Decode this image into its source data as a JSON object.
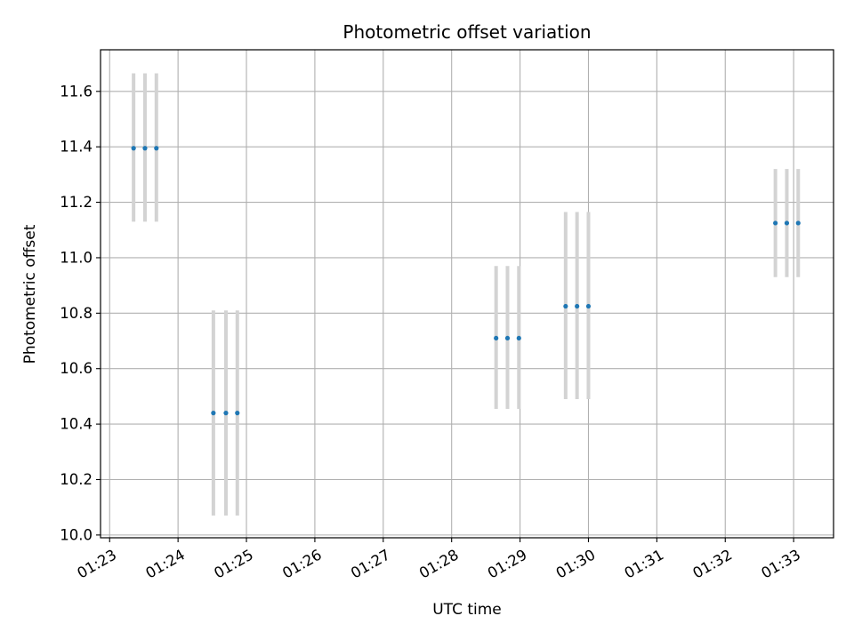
{
  "chart_data": {
    "type": "scatter",
    "title": "Photometric offset variation",
    "xlabel": "UTC time",
    "ylabel": "Photometric offset",
    "x_ticks": [
      "01:23",
      "01:24",
      "01:25",
      "01:26",
      "01:27",
      "01:28",
      "01:29",
      "01:30",
      "01:31",
      "01:32",
      "01:33"
    ],
    "y_ticks": [
      "10.0",
      "10.2",
      "10.4",
      "10.6",
      "10.8",
      "11.0",
      "11.2",
      "11.4",
      "11.6"
    ],
    "xlim": [
      "01:22:52",
      "01:33:35"
    ],
    "ylim": [
      9.99,
      11.75
    ],
    "grid": true,
    "point_color": "#1f77b4",
    "errorbar_color": "#d3d3d3",
    "points": [
      {
        "x": "01:23:21",
        "y": 11.395,
        "ylow": 11.13,
        "yhigh": 11.665
      },
      {
        "x": "01:23:31",
        "y": 11.395,
        "ylow": 11.13,
        "yhigh": 11.665
      },
      {
        "x": "01:23:41",
        "y": 11.395,
        "ylow": 11.13,
        "yhigh": 11.665
      },
      {
        "x": "01:24:31",
        "y": 10.44,
        "ylow": 10.07,
        "yhigh": 10.81
      },
      {
        "x": "01:24:42",
        "y": 10.44,
        "ylow": 10.07,
        "yhigh": 10.81
      },
      {
        "x": "01:24:52",
        "y": 10.44,
        "ylow": 10.07,
        "yhigh": 10.81
      },
      {
        "x": "01:28:39",
        "y": 10.71,
        "ylow": 10.455,
        "yhigh": 10.97
      },
      {
        "x": "01:28:49",
        "y": 10.71,
        "ylow": 10.455,
        "yhigh": 10.97
      },
      {
        "x": "01:28:59",
        "y": 10.71,
        "ylow": 10.455,
        "yhigh": 10.97
      },
      {
        "x": "01:29:40",
        "y": 10.825,
        "ylow": 10.49,
        "yhigh": 11.165
      },
      {
        "x": "01:29:50",
        "y": 10.825,
        "ylow": 10.49,
        "yhigh": 11.165
      },
      {
        "x": "01:30:00",
        "y": 10.825,
        "ylow": 10.49,
        "yhigh": 11.165
      },
      {
        "x": "01:32:44",
        "y": 11.125,
        "ylow": 10.93,
        "yhigh": 11.32
      },
      {
        "x": "01:32:54",
        "y": 11.125,
        "ylow": 10.93,
        "yhigh": 11.32
      },
      {
        "x": "01:33:04",
        "y": 11.125,
        "ylow": 10.93,
        "yhigh": 11.32
      }
    ]
  }
}
